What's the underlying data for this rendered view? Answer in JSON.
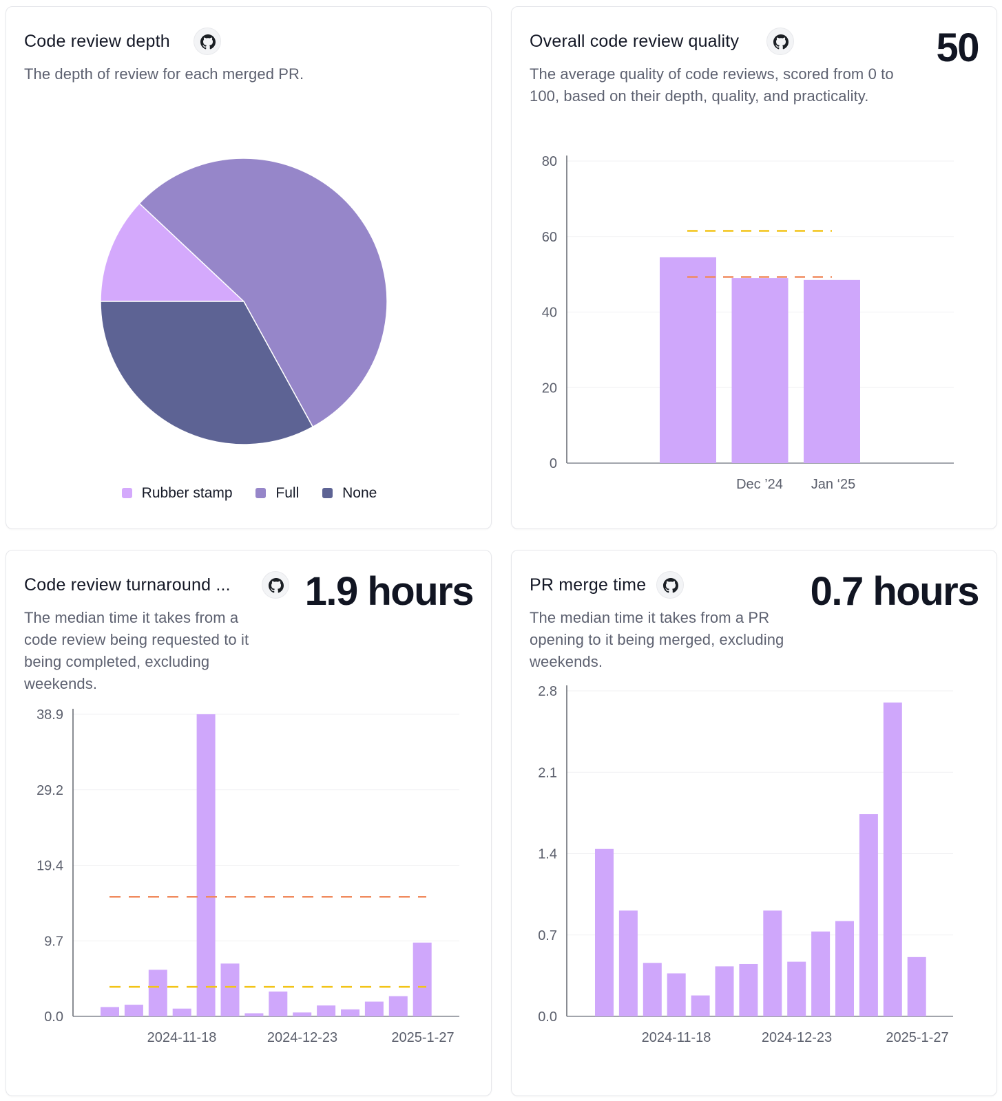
{
  "colors": {
    "bar": "#cfa7fb",
    "dash_orange": "#f08a5d",
    "dash_yellow": "#f2c417",
    "pie_rubber_stamp": "#d4a9fc",
    "pie_full": "#9686c9",
    "pie_none": "#5d6394"
  },
  "icons": {
    "github": "github-icon"
  },
  "cards": {
    "depth": {
      "title": "Code review depth",
      "description": "The depth of review for each merged PR."
    },
    "quality": {
      "title": "Overall code review quality",
      "value": "50",
      "description": "The average quality of code reviews, scored from 0 to 100, based on their depth, quality, and practicality."
    },
    "turnaround": {
      "title": "Code review turnaround ...",
      "value": "1.9 hours",
      "description": "The median time it takes from a code review being requested to it being completed, excluding weekends."
    },
    "merge": {
      "title": "PR merge time",
      "value": "0.7 hours",
      "description": "The median time it takes from a PR opening to it being merged, excluding weekends."
    }
  },
  "chart_data": [
    {
      "id": "depth",
      "type": "pie",
      "slices": [
        {
          "label": "Rubber stamp",
          "value": 12,
          "color": "#d4a9fc"
        },
        {
          "label": "Full",
          "value": 55,
          "color": "#9686c9"
        },
        {
          "label": "None",
          "value": 33,
          "color": "#5d6394"
        }
      ],
      "legend": "bottom"
    },
    {
      "id": "quality",
      "type": "bar",
      "ylim": [
        0,
        80
      ],
      "yticks": [
        "0",
        "20",
        "40",
        "60",
        "80"
      ],
      "x_labels": [
        "Dec ’24",
        "Jan ‘25"
      ],
      "values": [
        54.5,
        49,
        48.5
      ],
      "reference_lines": [
        {
          "value": 61.5,
          "color": "#f2c417"
        },
        {
          "value": 49.3,
          "color": "#f08a5d"
        }
      ],
      "grid": true
    },
    {
      "id": "turnaround",
      "type": "bar",
      "ylim": [
        0,
        38.9
      ],
      "yticks": [
        "0.0",
        "9.7",
        "19.4",
        "29.2",
        "38.9"
      ],
      "x_labels": [
        "2024-11-18",
        "2024-12-23",
        "2025-1-27"
      ],
      "values": [
        1.2,
        1.5,
        6.0,
        1.0,
        38.9,
        6.8,
        0.4,
        3.2,
        0.5,
        1.4,
        0.9,
        1.9,
        2.6,
        9.5
      ],
      "reference_lines": [
        {
          "value": 15.4,
          "color": "#f08a5d"
        },
        {
          "value": 3.8,
          "color": "#f2c417"
        }
      ],
      "grid": true
    },
    {
      "id": "merge",
      "type": "bar",
      "ylim": [
        0,
        2.8
      ],
      "yticks": [
        "0.0",
        "0.7",
        "1.4",
        "2.1",
        "2.8"
      ],
      "x_labels": [
        "2024-11-18",
        "2024-12-23",
        "2025-1-27"
      ],
      "values": [
        1.44,
        0.91,
        0.46,
        0.37,
        0.18,
        0.43,
        0.45,
        0.91,
        0.47,
        0.73,
        0.82,
        1.74,
        2.7,
        0.51
      ],
      "reference_lines": [],
      "grid": true
    }
  ]
}
